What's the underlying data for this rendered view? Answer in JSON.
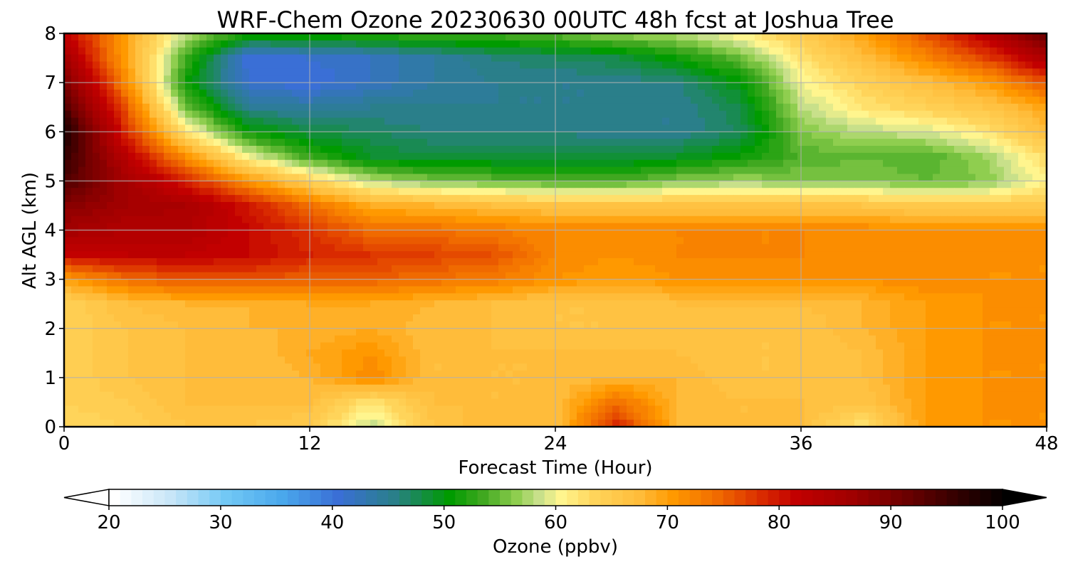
{
  "chart_data": {
    "type": "heatmap",
    "title": "WRF-Chem Ozone  20230630 00UTC 48h fcst at Joshua Tree",
    "xlabel": "Forecast Time (Hour)",
    "ylabel": "Alt AGL (km)",
    "xlim": [
      0,
      48
    ],
    "ylim": [
      0,
      8
    ],
    "x_ticks": [
      0,
      12,
      24,
      36,
      48
    ],
    "y_ticks": [
      0,
      1,
      2,
      3,
      4,
      5,
      6,
      7,
      8
    ],
    "grid": true,
    "x": [
      0,
      3,
      6,
      9,
      12,
      15,
      18,
      21,
      24,
      27,
      30,
      33,
      36,
      39,
      42,
      45,
      48
    ],
    "y": [
      0,
      0.5,
      1,
      1.5,
      2,
      2.5,
      3,
      3.5,
      4,
      4.5,
      5,
      5.5,
      6,
      6.5,
      7,
      7.5,
      8
    ],
    "z": [
      [
        63,
        64,
        66,
        66,
        65,
        58,
        66,
        68,
        67,
        79,
        68,
        67,
        67,
        62,
        70,
        71,
        71
      ],
      [
        64,
        65,
        67,
        67,
        67,
        62,
        67,
        67,
        67,
        74,
        68,
        67,
        67,
        66,
        70,
        71,
        71
      ],
      [
        64,
        66,
        67,
        67,
        68,
        72,
        67,
        67,
        67,
        68,
        68,
        66,
        66,
        67,
        70,
        71,
        71
      ],
      [
        64,
        66,
        67,
        67,
        69,
        71,
        67,
        67,
        67,
        67,
        67,
        66,
        66,
        67,
        70,
        71,
        71
      ],
      [
        64,
        66,
        67,
        68,
        68,
        69,
        67,
        67,
        66,
        66,
        67,
        66,
        66,
        68,
        70,
        71,
        71
      ],
      [
        64,
        67,
        68,
        68,
        69,
        69,
        68,
        67,
        66,
        66,
        67,
        67,
        67,
        68,
        70,
        71,
        71
      ],
      [
        70,
        74,
        76,
        76,
        75,
        75,
        74,
        73,
        71,
        70,
        71,
        71,
        71,
        71,
        72,
        71,
        71
      ],
      [
        81,
        82,
        82,
        81,
        79,
        78,
        77,
        76,
        72,
        71,
        72,
        72,
        72,
        71,
        72,
        71,
        71
      ],
      [
        86,
        84,
        84,
        81,
        78,
        74,
        74,
        73,
        72,
        72,
        72,
        72,
        72,
        72,
        71,
        71,
        71
      ],
      [
        89,
        86,
        85,
        80,
        74,
        69,
        68,
        67,
        66,
        66,
        66,
        66,
        66,
        66,
        65,
        65,
        65
      ],
      [
        94,
        86,
        79,
        71,
        64,
        58,
        56,
        55,
        54,
        54,
        56,
        57,
        56,
        56,
        55,
        56,
        61
      ],
      [
        96,
        83,
        71,
        60,
        53,
        49,
        48,
        48,
        48,
        48,
        49,
        51,
        54,
        55,
        54,
        57,
        63
      ],
      [
        98,
        79,
        62,
        51,
        48,
        47,
        46,
        46,
        46,
        45,
        45,
        47,
        56,
        58,
        59,
        62,
        67
      ],
      [
        94,
        76,
        55,
        45,
        44,
        45,
        45,
        45,
        45,
        45,
        45,
        48,
        58,
        62,
        64,
        66,
        70
      ],
      [
        90,
        72,
        51,
        41,
        40,
        42,
        44,
        45,
        45,
        45,
        46,
        50,
        60,
        64,
        67,
        70,
        76
      ],
      [
        86,
        70,
        53,
        40,
        41,
        42,
        44,
        46,
        47,
        48,
        51,
        55,
        62,
        67,
        72,
        77,
        85
      ],
      [
        82,
        70,
        58,
        52,
        52,
        53,
        54,
        54,
        55,
        57,
        58,
        61,
        65,
        70,
        76,
        83,
        92
      ]
    ],
    "colorbar": {
      "label": "Ozone  (ppbv)",
      "min": 20,
      "max": 100,
      "ticks": [
        20,
        30,
        40,
        50,
        60,
        70,
        80,
        90,
        100
      ],
      "extend": "both",
      "levels_step": 1,
      "colors": [
        {
          "v": 20,
          "c": "#ffffff"
        },
        {
          "v": 25,
          "c": "#c8e6f8"
        },
        {
          "v": 30,
          "c": "#72c8f5"
        },
        {
          "v": 35,
          "c": "#4aa8ec"
        },
        {
          "v": 40,
          "c": "#3a6fd6"
        },
        {
          "v": 45,
          "c": "#2a7f8a"
        },
        {
          "v": 50,
          "c": "#009b00"
        },
        {
          "v": 53,
          "c": "#40a820"
        },
        {
          "v": 56,
          "c": "#8fce4f"
        },
        {
          "v": 58,
          "c": "#c8e08a"
        },
        {
          "v": 60,
          "c": "#fff58e"
        },
        {
          "v": 63,
          "c": "#ffd45a"
        },
        {
          "v": 67,
          "c": "#ffbc3a"
        },
        {
          "v": 70,
          "c": "#ff9900"
        },
        {
          "v": 74,
          "c": "#f06a00"
        },
        {
          "v": 78,
          "c": "#d92a00"
        },
        {
          "v": 81,
          "c": "#c20000"
        },
        {
          "v": 86,
          "c": "#a00000"
        },
        {
          "v": 91,
          "c": "#6a0000"
        },
        {
          "v": 96,
          "c": "#2c0000"
        },
        {
          "v": 100,
          "c": "#000000"
        }
      ]
    }
  }
}
